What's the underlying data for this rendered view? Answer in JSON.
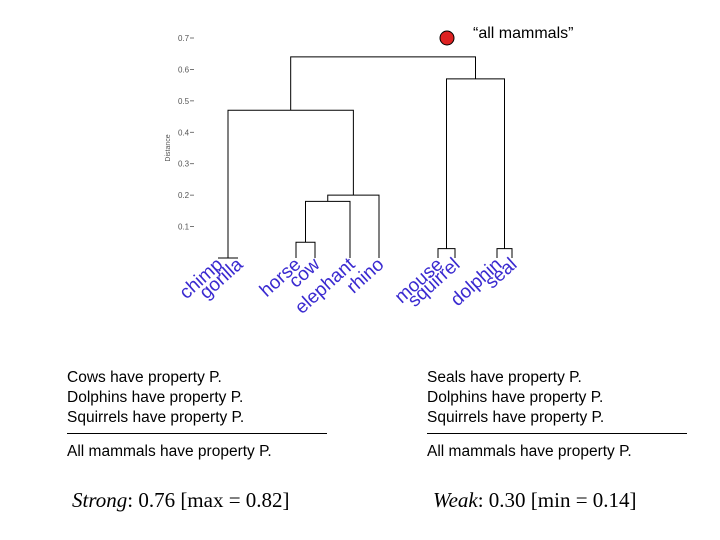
{
  "callout": {
    "label": "“all mammals”",
    "marker_color": "#dd2222"
  },
  "chart_data": {
    "type": "dendrogram",
    "ylabel": "Distance",
    "ylim": [
      0,
      0.7
    ],
    "y_ticks": [
      {
        "value": 0.7,
        "label": "0.7"
      },
      {
        "value": 0.6,
        "label": "0.6"
      },
      {
        "value": 0.5,
        "label": "0.5"
      },
      {
        "value": 0.4,
        "label": "0.4"
      },
      {
        "value": 0.3,
        "label": "0.3"
      },
      {
        "value": 0.2,
        "label": "0.2"
      },
      {
        "value": 0.1,
        "label": "0.1"
      }
    ],
    "leaves": [
      {
        "name": "chimp",
        "color": "#3a2ad0"
      },
      {
        "name": "gorilla",
        "color": "#3a2ad0"
      },
      {
        "name": "horse",
        "color": "#3a2ad0"
      },
      {
        "name": "cow",
        "color": "#3a2ad0"
      },
      {
        "name": "elephant",
        "color": "#3a2ad0"
      },
      {
        "name": "rhino",
        "color": "#3a2ad0"
      },
      {
        "name": "mouse",
        "color": "#3a2ad0"
      },
      {
        "name": "squirrel",
        "color": "#3a2ad0"
      },
      {
        "name": "dolphin",
        "color": "#3a2ad0"
      },
      {
        "name": "seal",
        "color": "#3a2ad0"
      }
    ],
    "merges": [
      {
        "left": "leaf:0",
        "right": "leaf:1",
        "height": 0.0
      },
      {
        "left": "leaf:2",
        "right": "leaf:3",
        "height": 0.05
      },
      {
        "left": "node:1",
        "right": "leaf:4",
        "height": 0.18
      },
      {
        "left": "node:2",
        "right": "leaf:5",
        "height": 0.2
      },
      {
        "left": "leaf:6",
        "right": "leaf:7",
        "height": 0.03
      },
      {
        "left": "leaf:8",
        "right": "leaf:9",
        "height": 0.03
      },
      {
        "left": "node:4",
        "right": "node:5",
        "height": 0.57
      },
      {
        "left": "node:0",
        "right": "node:3",
        "height": 0.47
      },
      {
        "left": "node:7",
        "right": "node:6",
        "height": 0.64
      }
    ]
  },
  "strong_argument": {
    "premises": [
      "Cows have property P.",
      "Dolphins have property P.",
      "Squirrels have property P."
    ],
    "conclusion": "All mammals have property P.",
    "label": "Strong",
    "score": ": 0.76 [max = 0.82]"
  },
  "weak_argument": {
    "premises": [
      "Seals have property P.",
      "Dolphins have property P.",
      "Squirrels have property P."
    ],
    "conclusion": "All mammals have property P.",
    "label": "Weak",
    "score": ": 0.30 [min = 0.14]"
  }
}
